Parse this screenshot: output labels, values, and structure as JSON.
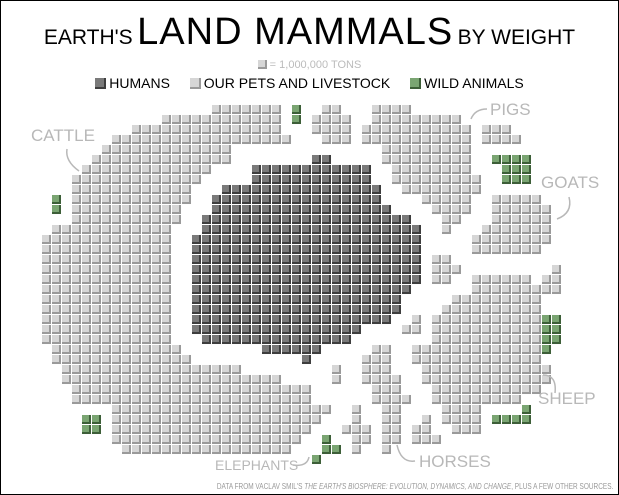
{
  "title": {
    "prefix": "Earth's",
    "main": "Land Mammals",
    "suffix": "by weight"
  },
  "unit_legend": "= 1,000,000 tons",
  "legend": [
    {
      "label": "Humans",
      "color": "#777777"
    },
    {
      "label": "Our pets and livestock",
      "color": "#d6d6d6"
    },
    {
      "label": "Wild animals",
      "color": "#7aa572"
    }
  ],
  "annotations": {
    "cattle": "Cattle",
    "pigs": "Pigs",
    "goats": "Goats",
    "sheep": "Sheep",
    "horses": "Horses",
    "elephants": "Elephants"
  },
  "footer": {
    "prefix": "Data from Vaclav Smil's",
    "book": "The Earth's Biosphere: Evolution, Dynamics, and Change",
    "suffix": ", plus a few other sources."
  },
  "chart_data": {
    "type": "waffle",
    "title": "Earth's Land Mammals by weight",
    "unit": "1 square = 1,000,000 tons",
    "categories": [
      "Humans",
      "Our pets and livestock",
      "Wild animals"
    ],
    "values": [
      358,
      830,
      34
    ],
    "colors": [
      "#777777",
      "#d6d6d6",
      "#7aa572"
    ],
    "annotated_groups": [
      "Cattle",
      "Pigs",
      "Goats",
      "Sheep",
      "Horses",
      "Elephants"
    ],
    "legend_position": "top"
  }
}
